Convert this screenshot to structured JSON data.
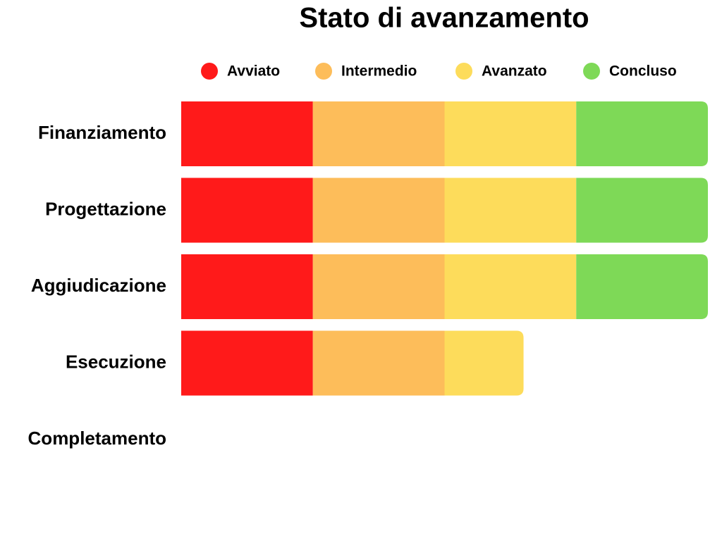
{
  "chart_data": {
    "type": "stacked-bar-horizontal",
    "title": "Stato di avanzamento",
    "categories": [
      "Finanziamento",
      "Progettazione",
      "Aggiudicazione",
      "Esecuzione",
      "Completamento"
    ],
    "series": [
      {
        "name": "Avviato",
        "color": "#ff1a1a",
        "values": [
          25,
          25,
          25,
          25,
          0
        ]
      },
      {
        "name": "Intermedio",
        "color": "#fdbd5a",
        "values": [
          25,
          25,
          25,
          25,
          0
        ]
      },
      {
        "name": "Avanzato",
        "color": "#fddc5b",
        "values": [
          25,
          25,
          25,
          15,
          0
        ]
      },
      {
        "name": "Concluso",
        "color": "#7ed957",
        "values": [
          25,
          25,
          25,
          0,
          0
        ]
      }
    ],
    "xlim": [
      0,
      100
    ],
    "legend": "top"
  }
}
